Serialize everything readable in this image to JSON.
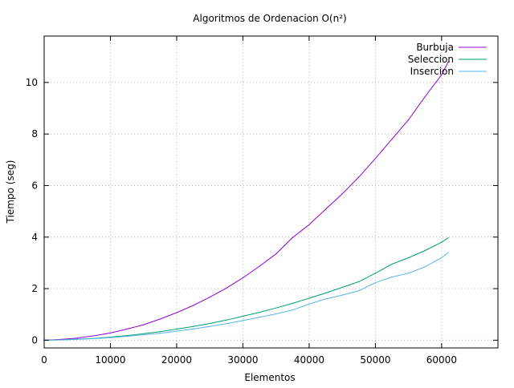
{
  "chart_data": {
    "type": "line",
    "title": "Algoritmos de Ordenacion O(n²)",
    "xlabel": "Elementos",
    "ylabel": "Tiempo (seg)",
    "xlim": [
      0,
      68500
    ],
    "ylim": [
      -0.3,
      11.8
    ],
    "x_ticks": [
      0,
      10000,
      20000,
      30000,
      40000,
      50000,
      60000
    ],
    "y_ticks": [
      0,
      2,
      4,
      6,
      8,
      10
    ],
    "grid": true,
    "legend_position": "top-right",
    "series": [
      {
        "name": "Burbuja",
        "color": "#9400d3",
        "x": [
          0,
          2500,
          5000,
          7500,
          10000,
          12500,
          15000,
          17500,
          20000,
          22500,
          25000,
          27500,
          30000,
          32500,
          35000,
          37500,
          40000,
          42500,
          45000,
          47500,
          50000,
          52500,
          55000,
          57500,
          60000,
          61000
        ],
        "y": [
          0,
          0.03,
          0.08,
          0.17,
          0.28,
          0.43,
          0.6,
          0.82,
          1.07,
          1.35,
          1.67,
          2.02,
          2.42,
          2.87,
          3.35,
          3.98,
          4.48,
          5.08,
          5.68,
          6.33,
          7.05,
          7.8,
          8.55,
          9.45,
          10.3,
          10.8
        ]
      },
      {
        "name": "Seleccion",
        "color": "#009e73",
        "x": [
          0,
          2500,
          5000,
          7500,
          10000,
          12500,
          15000,
          17500,
          20000,
          22500,
          25000,
          27500,
          30000,
          32500,
          35000,
          37500,
          40000,
          42500,
          45000,
          47500,
          50000,
          52500,
          55000,
          57500,
          60000,
          61000
        ],
        "y": [
          0,
          0.01,
          0.04,
          0.07,
          0.12,
          0.18,
          0.25,
          0.33,
          0.43,
          0.53,
          0.65,
          0.78,
          0.93,
          1.08,
          1.25,
          1.43,
          1.63,
          1.83,
          2.05,
          2.27,
          2.6,
          2.95,
          3.2,
          3.48,
          3.8,
          3.97
        ]
      },
      {
        "name": "Insercion",
        "color": "#56b4e9",
        "x": [
          0,
          2500,
          5000,
          7500,
          10000,
          12500,
          15000,
          17500,
          20000,
          22500,
          25000,
          27500,
          30000,
          32500,
          35000,
          37500,
          40000,
          42500,
          45000,
          47500,
          50000,
          52500,
          55000,
          57500,
          60000,
          61000
        ],
        "y": [
          0,
          0.01,
          0.03,
          0.06,
          0.1,
          0.15,
          0.21,
          0.27,
          0.35,
          0.44,
          0.53,
          0.64,
          0.76,
          0.89,
          1.02,
          1.17,
          1.4,
          1.6,
          1.75,
          1.92,
          2.23,
          2.45,
          2.6,
          2.85,
          3.2,
          3.4
        ]
      }
    ]
  }
}
